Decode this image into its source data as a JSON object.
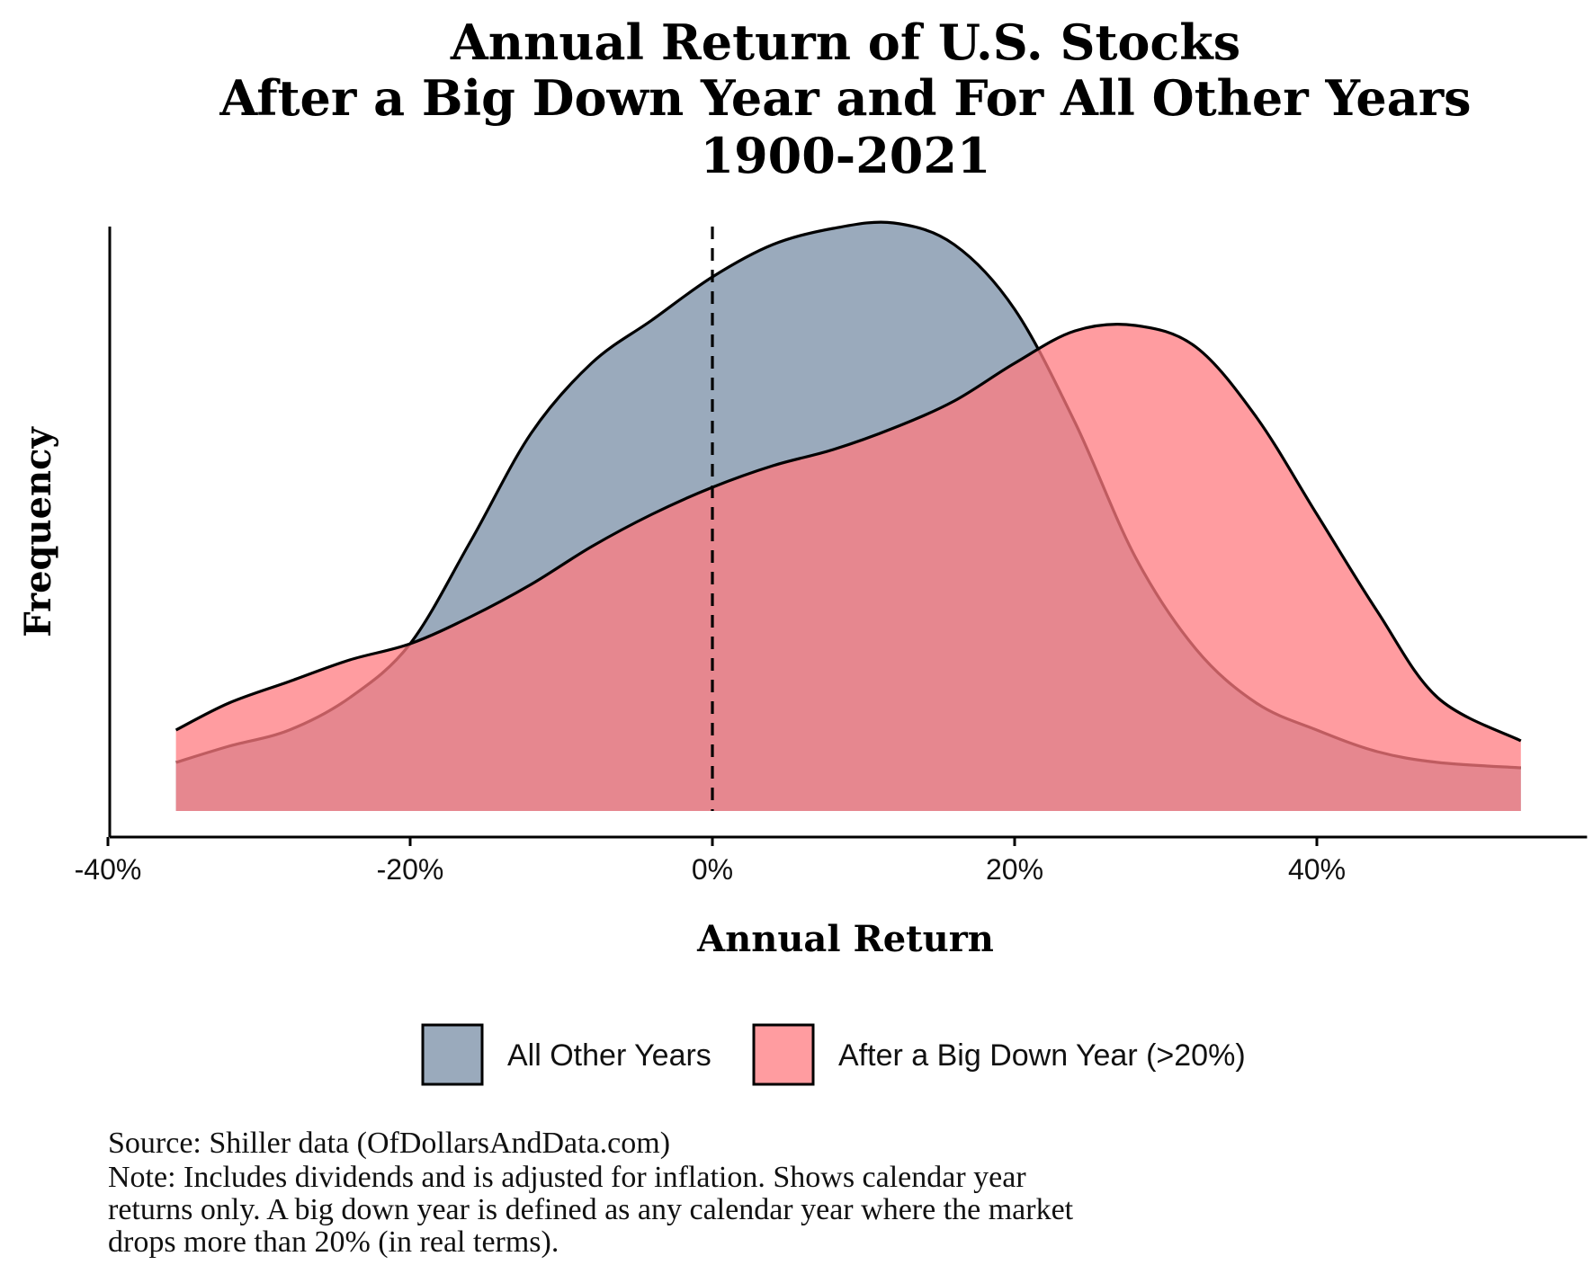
{
  "chart_data": {
    "type": "area",
    "subtype": "density",
    "title_lines": [
      "Annual Return of U.S. Stocks",
      "After a Big Down Year and For All Other Years",
      "1900-2021"
    ],
    "xlabel": "Annual Return",
    "ylabel": "Frequency",
    "xlim": [
      -0.4,
      0.58
    ],
    "ylim": [
      0,
      1.05
    ],
    "x_ticks": [
      -0.4,
      -0.2,
      0,
      0.2,
      0.4
    ],
    "x_tick_labels": [
      "-40%",
      "-20%",
      "0%",
      "20%",
      "40%"
    ],
    "y_ticks_shown": false,
    "grid": false,
    "reference_line": {
      "x": 0,
      "style": "dashed"
    },
    "legend_position": "bottom",
    "series": [
      {
        "name": "All Other Years",
        "color": "#8497ad",
        "x": [
          -0.355,
          -0.32,
          -0.28,
          -0.24,
          -0.2,
          -0.16,
          -0.12,
          -0.08,
          -0.04,
          0,
          0.04,
          0.08,
          0.12,
          0.16,
          0.2,
          0.24,
          0.28,
          0.32,
          0.36,
          0.4,
          0.44,
          0.48,
          0.535
        ],
        "y": [
          0.09,
          0.12,
          0.15,
          0.21,
          0.31,
          0.5,
          0.7,
          0.83,
          0.91,
          0.99,
          1.05,
          1.08,
          1.09,
          1.05,
          0.93,
          0.72,
          0.47,
          0.3,
          0.2,
          0.15,
          0.11,
          0.09,
          0.08
        ]
      },
      {
        "name": "After a Big Down Year (>20%)",
        "color": "#ff7b80",
        "x": [
          -0.355,
          -0.32,
          -0.28,
          -0.24,
          -0.2,
          -0.16,
          -0.12,
          -0.08,
          -0.04,
          0,
          0.04,
          0.08,
          0.12,
          0.16,
          0.2,
          0.24,
          0.28,
          0.32,
          0.36,
          0.4,
          0.44,
          0.48,
          0.535
        ],
        "y": [
          0.15,
          0.2,
          0.24,
          0.28,
          0.31,
          0.36,
          0.42,
          0.49,
          0.55,
          0.6,
          0.64,
          0.67,
          0.71,
          0.76,
          0.83,
          0.89,
          0.9,
          0.86,
          0.73,
          0.55,
          0.37,
          0.21,
          0.13
        ]
      }
    ],
    "legend": [
      {
        "label": "All Other Years",
        "color": "#8497ad"
      },
      {
        "label": "After a Big Down Year (>20%)",
        "color": "#ff7b80"
      }
    ]
  },
  "caption": [
    "Source: Shiller data (OfDollarsAndData.com)",
    "Note: Includes dividends and is adjusted for inflation. Shows calendar year",
    "returns only. A big down year is defined as any calendar year where the market",
    "drops more than 20% (in real terms)."
  ]
}
